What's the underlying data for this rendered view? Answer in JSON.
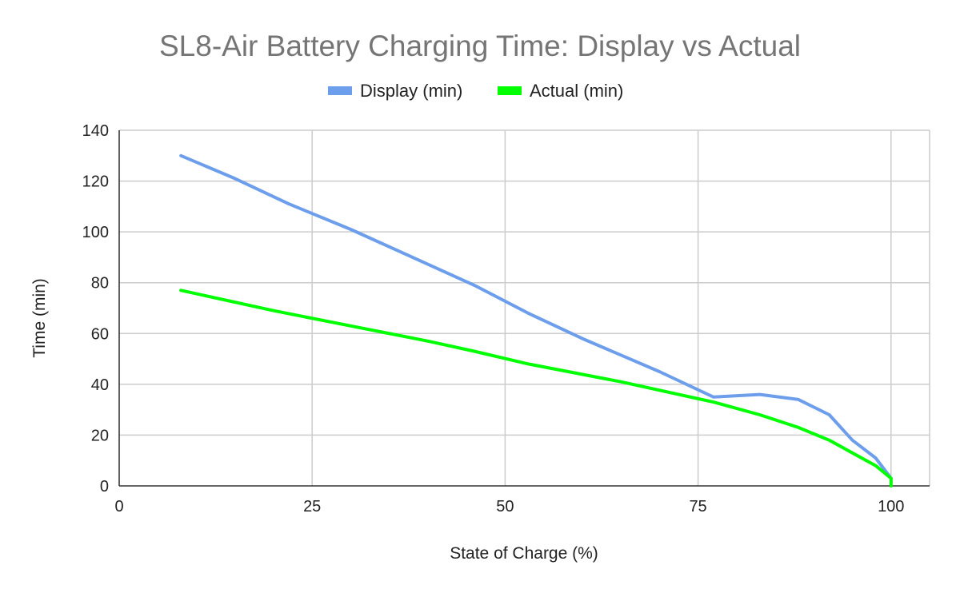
{
  "chart_data": {
    "type": "line",
    "title": "SL8-Air Battery Charging Time: Display vs Actual",
    "xlabel": "State of Charge (%)",
    "ylabel": "Time (min)",
    "xlim": [
      0,
      105
    ],
    "ylim": [
      0,
      140
    ],
    "x_ticks": [
      0,
      25,
      50,
      75,
      100
    ],
    "y_ticks": [
      0,
      20,
      40,
      60,
      80,
      100,
      120,
      140
    ],
    "grid": true,
    "legend_position": "top",
    "series": [
      {
        "name": "Display (min)",
        "color": "#6d9eeb",
        "x": [
          8,
          15,
          22,
          30,
          38,
          46,
          53,
          60,
          70,
          77,
          83,
          88,
          92,
          95,
          98,
          100
        ],
        "y": [
          130,
          121,
          111,
          101,
          90,
          79,
          68,
          58,
          45,
          35,
          36,
          34,
          28,
          18,
          11,
          3
        ]
      },
      {
        "name": "Actual (min)",
        "color": "#00ff00",
        "x": [
          8,
          20,
          30,
          40,
          46,
          53,
          65,
          77,
          83,
          88,
          92,
          95,
          98,
          100,
          100
        ],
        "y": [
          77,
          69,
          63,
          57,
          53,
          48,
          41,
          33,
          28,
          23,
          18,
          13,
          8,
          3,
          0
        ]
      }
    ]
  }
}
